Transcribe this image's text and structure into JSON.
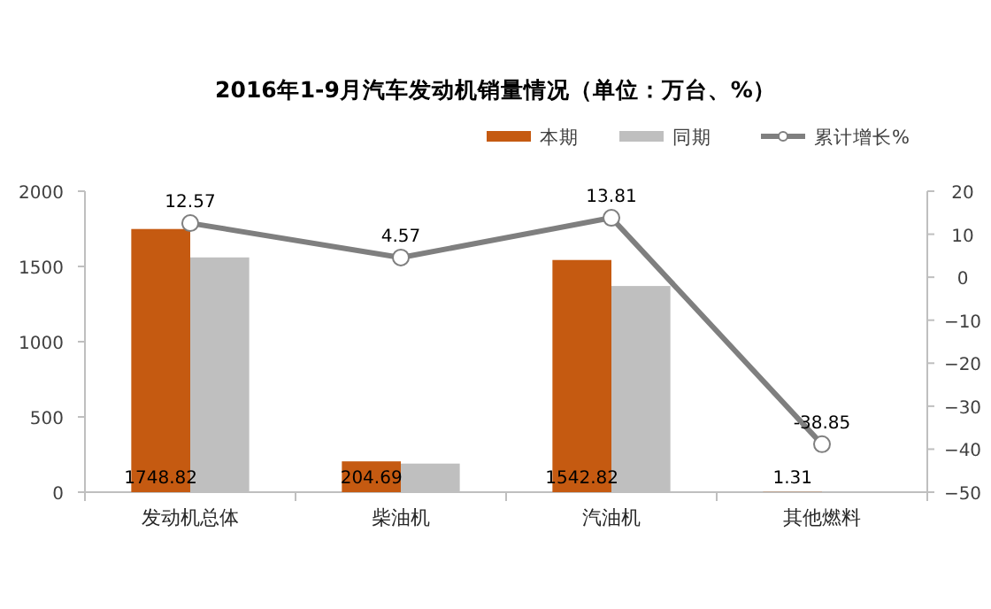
{
  "chart_data": {
    "type": "bar",
    "title": "2016年1-9月汽车发动机销量情况（单位：万台、%）",
    "categories": [
      "发动机总体",
      "柴油机",
      "汽油机",
      "其他燃料"
    ],
    "series": [
      {
        "name": "本期",
        "color": "#c55a11",
        "values": [
          1748.82,
          204.69,
          1542.82,
          1.31
        ],
        "value_labels": [
          "1748.82",
          "204.69",
          "1542.82",
          "1.31"
        ]
      },
      {
        "name": "同期",
        "color": "#bfbfbf",
        "values": [
          1560,
          190,
          1370,
          2
        ]
      },
      {
        "name": "累计增长%",
        "type": "line",
        "axis": "y2",
        "color": "#7f7f7f",
        "marker": "circle",
        "values": [
          12.57,
          4.57,
          13.81,
          -38.85
        ],
        "value_labels": [
          "12.57",
          "4.57",
          "13.81",
          "-38.85"
        ]
      }
    ],
    "ylim": [
      0,
      2000
    ],
    "yticks": [
      0,
      500,
      1000,
      1500,
      2000
    ],
    "y2lim": [
      -50,
      20
    ],
    "y2ticks": [
      -50,
      -40,
      -30,
      -20,
      -10,
      0,
      10,
      20
    ],
    "legend": "top right"
  }
}
